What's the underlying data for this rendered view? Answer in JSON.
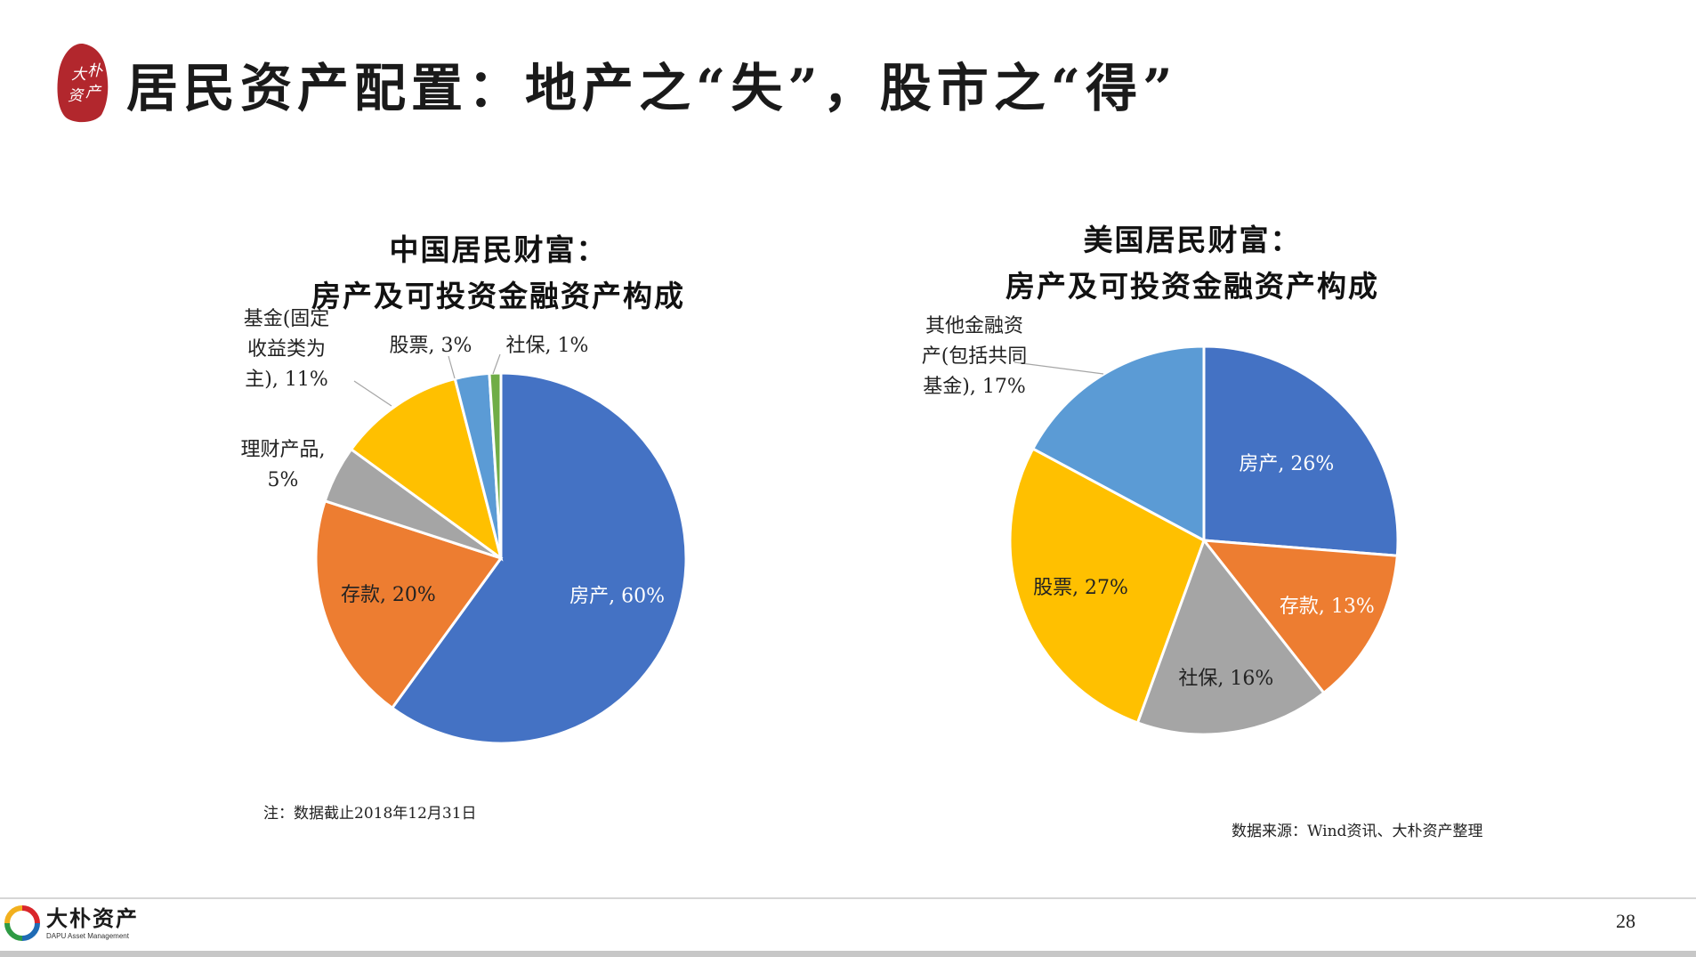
{
  "header": {
    "title": "居民资产配置：地产之“失”，股市之“得”",
    "seal_text": "大朴资产",
    "seal_color": "#b2272d"
  },
  "chart_data": [
    {
      "type": "pie",
      "title_line1": "中国居民财富：",
      "title_line2": "房产及可投资金融资产构成",
      "start_angle_deg": 0,
      "slices": [
        {
          "label": "房产, 60%",
          "value": 60,
          "color": "#4472c4",
          "label_color": "#ffffff",
          "label_mode": "inside"
        },
        {
          "label": "存款, 20%",
          "value": 20,
          "color": "#ed7d31",
          "label_color": "#222222",
          "label_mode": "inside"
        },
        {
          "label": "理财产品,\n5%",
          "value": 5,
          "color": "#a5a5a5",
          "label_color": "#222222",
          "label_mode": "outside"
        },
        {
          "label": "基金(固定\n收益类为\n主), 11%",
          "value": 11,
          "color": "#ffc000",
          "label_color": "#222222",
          "label_mode": "outside",
          "leader": true
        },
        {
          "label": "股票, 3%",
          "value": 3,
          "color": "#5b9bd5",
          "label_color": "#222222",
          "label_mode": "outside",
          "leader": true
        },
        {
          "label": "社保, 1%",
          "value": 1,
          "color": "#70ad47",
          "label_color": "#222222",
          "label_mode": "outside",
          "leader": true
        }
      ],
      "note": "注：数据截止2018年12月31日"
    },
    {
      "type": "pie",
      "title_line1": "美国居民财富：",
      "title_line2": "房产及可投资金融资产构成",
      "start_angle_deg": 0,
      "slices": [
        {
          "label": "房产, 26%",
          "value": 26,
          "color": "#4472c4",
          "label_color": "#ffffff",
          "label_mode": "inside"
        },
        {
          "label": "存款, 13%",
          "value": 13,
          "color": "#ed7d31",
          "label_color": "#ffffff",
          "label_mode": "inside"
        },
        {
          "label": "社保, 16%",
          "value": 16,
          "color": "#a5a5a5",
          "label_color": "#222222",
          "label_mode": "inside"
        },
        {
          "label": "股票, 27%",
          "value": 27,
          "color": "#ffc000",
          "label_color": "#222222",
          "label_mode": "inside"
        },
        {
          "label": "其他金融资\n产(包括共同\n基金), 17%",
          "value": 17,
          "color": "#5b9bd5",
          "label_color": "#222222",
          "label_mode": "outside",
          "leader": true
        }
      ],
      "note": "数据来源：Wind资讯、大朴资产整理"
    }
  ],
  "footer": {
    "company_cn": "大朴资产",
    "company_en": "DAPU Asset Management",
    "page_number": "28"
  }
}
